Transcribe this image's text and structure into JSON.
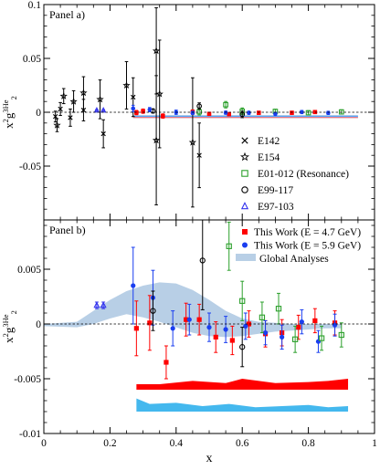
{
  "chart_data": [
    {
      "panel_label": "Panel a)",
      "type": "scatter",
      "xlim": [
        0,
        1
      ],
      "ylim": [
        -0.1,
        0.1
      ],
      "yticks": [
        {
          "v": 0.1,
          "t": "0.1"
        },
        {
          "v": 0.05,
          "t": "0.05"
        },
        {
          "v": 0,
          "t": "0"
        },
        {
          "v": -0.05,
          "t": "-0.05"
        }
      ],
      "ylabel": {
        "main": "x",
        "sup1": "2",
        "mid": "g",
        "sup2": "3",
        "sup2b": "He",
        "sub": "2"
      },
      "reference_line": 0,
      "band": {
        "color": "#b8cfe6",
        "x": [
          0.27,
          0.95
        ],
        "y_top": -0.0025,
        "y_bot": -0.0055
      },
      "legend_position": "lower-right",
      "series": [
        {
          "name": "E142",
          "marker": "x",
          "color": "#000000",
          "points": [
            {
              "x": 0.035,
              "y": -0.004,
              "e": 0.005
            },
            {
              "x": 0.05,
              "y": 0.003,
              "e": 0.006
            },
            {
              "x": 0.08,
              "y": -0.005,
              "e": 0.008
            },
            {
              "x": 0.12,
              "y": 0.002,
              "e": 0.01
            },
            {
              "x": 0.18,
              "y": -0.02,
              "e": 0.013
            },
            {
              "x": 0.27,
              "y": 0.014,
              "e": 0.018
            },
            {
              "x": 0.47,
              "y": -0.04,
              "e": 0.03
            }
          ]
        },
        {
          "name": "E154",
          "marker": "star",
          "color": "#000000",
          "points": [
            {
              "x": 0.04,
              "y": -0.012,
              "e": 0.006
            },
            {
              "x": 0.06,
              "y": 0.015,
              "e": 0.007
            },
            {
              "x": 0.09,
              "y": 0.01,
              "e": 0.01
            },
            {
              "x": 0.12,
              "y": 0.018,
              "e": 0.015
            },
            {
              "x": 0.17,
              "y": 0.012,
              "e": 0.018
            },
            {
              "x": 0.25,
              "y": 0.025,
              "e": 0.022
            },
            {
              "x": 0.34,
              "y": 0.057,
              "e": 0.04
            },
            {
              "x": 0.34,
              "y": -0.026,
              "e": 0.06
            },
            {
              "x": 0.35,
              "y": 0.017,
              "e": 0.05
            },
            {
              "x": 0.45,
              "y": -0.028,
              "e": 0.06
            }
          ]
        },
        {
          "name": "E01-012 (Resonance)",
          "marker": "square-open",
          "color": "#2ca02c",
          "points": [
            {
              "x": 0.47,
              "y": 0.0004,
              "e": 0.003
            },
            {
              "x": 0.55,
              "y": 0.007,
              "e": 0.003
            },
            {
              "x": 0.6,
              "y": 0.001,
              "e": 0.003
            },
            {
              "x": 0.7,
              "y": 0.0008,
              "e": 0.002
            },
            {
              "x": 0.8,
              "y": -0.0005,
              "e": 0.002
            },
            {
              "x": 0.9,
              "y": 0.0003,
              "e": 0.002
            }
          ]
        },
        {
          "name": "E99-117",
          "marker": "circle-open",
          "color": "#000000",
          "points": [
            {
              "x": 0.33,
              "y": 0.0012,
              "e": 0.002
            },
            {
              "x": 0.47,
              "y": 0.0057,
              "e": 0.003
            },
            {
              "x": 0.6,
              "y": -0.002,
              "e": 0.003
            }
          ]
        },
        {
          "name": "E97-103",
          "marker": "triangle-open",
          "color": "#3333ee",
          "points": [
            {
              "x": 0.16,
              "y": 0.0017,
              "e": 0.0007
            },
            {
              "x": 0.18,
              "y": 0.0017,
              "e": 0.0007
            }
          ]
        },
        {
          "name": "",
          "marker": "square",
          "color": "#ff0000",
          "points": [
            {
              "x": 0.28,
              "y": -0.0003,
              "e": 0.002
            },
            {
              "x": 0.3,
              "y": 0.001,
              "e": 0.002
            },
            {
              "x": 0.36,
              "y": -0.0035,
              "e": 0.002
            },
            {
              "x": 0.45,
              "y": 0.0002,
              "e": 0.002
            },
            {
              "x": 0.5,
              "y": -0.0015,
              "e": 0.0015
            },
            {
              "x": 0.56,
              "y": -0.0018,
              "e": 0.0015
            },
            {
              "x": 0.65,
              "y": -0.0005,
              "e": 0.0015
            },
            {
              "x": 0.75,
              "y": -0.0005,
              "e": 0.0015
            },
            {
              "x": 0.82,
              "y": 0.0002,
              "e": 0.0015
            }
          ]
        },
        {
          "name": "",
          "marker": "circle",
          "color": "#1a3ef0",
          "points": [
            {
              "x": 0.27,
              "y": 0.0035,
              "e": 0.003
            },
            {
              "x": 0.32,
              "y": 0.0024,
              "e": 0.002
            },
            {
              "x": 0.4,
              "y": 0.0,
              "e": 0.002
            },
            {
              "x": 0.45,
              "y": -0.0005,
              "e": 0.0015
            },
            {
              "x": 0.55,
              "y": -0.0004,
              "e": 0.0015
            },
            {
              "x": 0.62,
              "y": -0.0005,
              "e": 0.0015
            },
            {
              "x": 0.7,
              "y": -0.0015,
              "e": 0.0015
            },
            {
              "x": 0.78,
              "y": 0.0002,
              "e": 0.0015
            },
            {
              "x": 0.86,
              "y": -0.0006,
              "e": 0.0015
            }
          ]
        }
      ],
      "curves": [
        {
          "color": "#ff6666",
          "x": [
            0.27,
            0.95
          ],
          "y": [
            -0.0048,
            -0.0048
          ]
        },
        {
          "color": "#55aaff",
          "x": [
            0.27,
            0.95
          ],
          "y": [
            -0.0038,
            -0.0038
          ]
        }
      ]
    },
    {
      "panel_label": "Panel b)",
      "type": "scatter",
      "xlim": [
        0,
        1
      ],
      "ylim": [
        -0.01,
        0.0095
      ],
      "xticks": [
        {
          "v": 0,
          "t": "0"
        },
        {
          "v": 0.2,
          "t": "0.2"
        },
        {
          "v": 0.4,
          "t": "0.4"
        },
        {
          "v": 0.6,
          "t": "0.6"
        },
        {
          "v": 0.8,
          "t": "0.8"
        },
        {
          "v": 1,
          "t": "1"
        }
      ],
      "yticks": [
        {
          "v": 0.005,
          "t": "0.005"
        },
        {
          "v": 0,
          "t": "0"
        },
        {
          "v": -0.005,
          "t": "-0.005"
        },
        {
          "v": -0.01,
          "t": "-0.01"
        }
      ],
      "xlabel": "x",
      "ylabel": {
        "main": "x",
        "sup1": "2",
        "mid": "g",
        "sup2": "3",
        "sup2b": "He",
        "sub": "2"
      },
      "reference_line": 0,
      "legend_position": "top-right",
      "legend": [
        {
          "label": "This Work (E = 4.7 GeV)",
          "marker": "square",
          "color": "#ff0000"
        },
        {
          "label": "This Work (E = 5.9 GeV)",
          "marker": "circle",
          "color": "#1a3ef0"
        },
        {
          "label": "Global Analyses",
          "marker": "band",
          "color": "#b8cfe6"
        }
      ],
      "global_band": {
        "color": "#b8cfe6",
        "x": [
          0.0,
          0.1,
          0.15,
          0.2,
          0.25,
          0.3,
          0.35,
          0.4,
          0.45,
          0.5,
          0.55,
          0.6,
          0.65,
          0.7,
          0.75,
          0.8,
          0.85,
          0.9
        ],
        "upper": [
          0.0,
          0.0002,
          0.0012,
          0.0022,
          0.003,
          0.0035,
          0.0038,
          0.0037,
          0.0031,
          0.0022,
          0.0012,
          0.0005,
          0.0002,
          0.0001,
          0.0,
          0.0,
          0.0,
          0.0
        ],
        "lower": [
          -0.0002,
          -0.0003,
          0.0,
          0.0005,
          0.0009,
          0.0006,
          0.0002,
          -0.0003,
          -0.0008,
          -0.0011,
          -0.0012,
          -0.0011,
          -0.0009,
          -0.0007,
          -0.0006,
          -0.0005,
          -0.0004,
          -0.0004
        ]
      },
      "systematic_bands": [
        {
          "name": "E = 4.7 GeV systematic",
          "color": "#ff0000",
          "x": [
            0.28,
            0.35,
            0.45,
            0.55,
            0.6,
            0.7,
            0.8,
            0.86,
            0.92
          ],
          "top": [
            -0.0055,
            -0.0055,
            -0.0052,
            -0.0054,
            -0.005,
            -0.0054,
            -0.0053,
            -0.0052,
            -0.005
          ],
          "base": -0.006
        },
        {
          "name": "E = 5.9 GeV systematic",
          "color": "#44b8ee",
          "x": [
            0.28,
            0.32,
            0.4,
            0.48,
            0.56,
            0.64,
            0.72,
            0.8,
            0.86,
            0.92
          ],
          "top": [
            -0.0068,
            -0.0073,
            -0.0072,
            -0.0075,
            -0.0073,
            -0.0076,
            -0.0075,
            -0.0074,
            -0.0076,
            -0.0075
          ],
          "base": -0.008
        }
      ],
      "series": [
        {
          "name": "This Work (E = 4.7 GeV)",
          "marker": "square",
          "color": "#ff0000",
          "points": [
            {
              "x": 0.28,
              "y": -0.0004,
              "e": 0.0025
            },
            {
              "x": 0.32,
              "y": 0.0001,
              "e": 0.0025
            },
            {
              "x": 0.37,
              "y": -0.0035,
              "e": 0.0015
            },
            {
              "x": 0.43,
              "y": 0.0004,
              "e": 0.0015
            },
            {
              "x": 0.47,
              "y": 0.0004,
              "e": 0.0014
            },
            {
              "x": 0.52,
              "y": -0.0012,
              "e": 0.0014
            },
            {
              "x": 0.57,
              "y": -0.0015,
              "e": 0.0013
            },
            {
              "x": 0.62,
              "y": 0.0,
              "e": 0.0012
            },
            {
              "x": 0.67,
              "y": -0.0009,
              "e": 0.0012
            },
            {
              "x": 0.72,
              "y": -0.0008,
              "e": 0.0012
            },
            {
              "x": 0.77,
              "y": -0.0003,
              "e": 0.0011
            },
            {
              "x": 0.82,
              "y": 0.0003,
              "e": 0.0011
            },
            {
              "x": 0.88,
              "y": 0.0001,
              "e": 0.0011
            }
          ]
        },
        {
          "name": "This Work (E = 5.9 GeV)",
          "marker": "circle",
          "color": "#1a3ef0",
          "points": [
            {
              "x": 0.27,
              "y": 0.0035,
              "e": 0.0035
            },
            {
              "x": 0.33,
              "y": 0.0024,
              "e": 0.0025
            },
            {
              "x": 0.39,
              "y": -0.0004,
              "e": 0.0016
            },
            {
              "x": 0.44,
              "y": 0.0004,
              "e": 0.0014
            },
            {
              "x": 0.5,
              "y": -0.0003,
              "e": 0.0013
            },
            {
              "x": 0.55,
              "y": -0.0005,
              "e": 0.0012
            },
            {
              "x": 0.61,
              "y": -0.0002,
              "e": 0.0012
            },
            {
              "x": 0.67,
              "y": -0.0008,
              "e": 0.0011
            },
            {
              "x": 0.72,
              "y": -0.0012,
              "e": 0.0011
            },
            {
              "x": 0.78,
              "y": 0.0002,
              "e": 0.0011
            },
            {
              "x": 0.83,
              "y": -0.0016,
              "e": 0.001
            },
            {
              "x": 0.88,
              "y": -0.0001,
              "e": 0.001
            }
          ]
        },
        {
          "name": "E01-012 (Resonance)",
          "marker": "square-open",
          "color": "#2ca02c",
          "points": [
            {
              "x": 0.56,
              "y": 0.0071,
              "e": 0.0022
            },
            {
              "x": 0.6,
              "y": 0.0021,
              "e": 0.0018
            },
            {
              "x": 0.66,
              "y": 0.0006,
              "e": 0.0014
            },
            {
              "x": 0.71,
              "y": 0.0014,
              "e": 0.0014
            },
            {
              "x": 0.76,
              "y": -0.0014,
              "e": 0.0012
            },
            {
              "x": 0.84,
              "y": -0.0013,
              "e": 0.0011
            },
            {
              "x": 0.9,
              "y": -0.001,
              "e": 0.0011
            }
          ]
        },
        {
          "name": "E99-117",
          "marker": "circle-open",
          "color": "#000000",
          "points": [
            {
              "x": 0.33,
              "y": 0.0012,
              "e": 0.0018
            },
            {
              "x": 0.48,
              "y": 0.0058,
              "e": 0.0045
            },
            {
              "x": 0.6,
              "y": -0.0021,
              "e": 0.0018
            }
          ]
        },
        {
          "name": "E97-103",
          "marker": "triangle-open",
          "color": "#3333ee",
          "points": [
            {
              "x": 0.16,
              "y": 0.0017,
              "e": 0.0003
            },
            {
              "x": 0.18,
              "y": 0.0017,
              "e": 0.0003
            }
          ]
        }
      ]
    }
  ]
}
